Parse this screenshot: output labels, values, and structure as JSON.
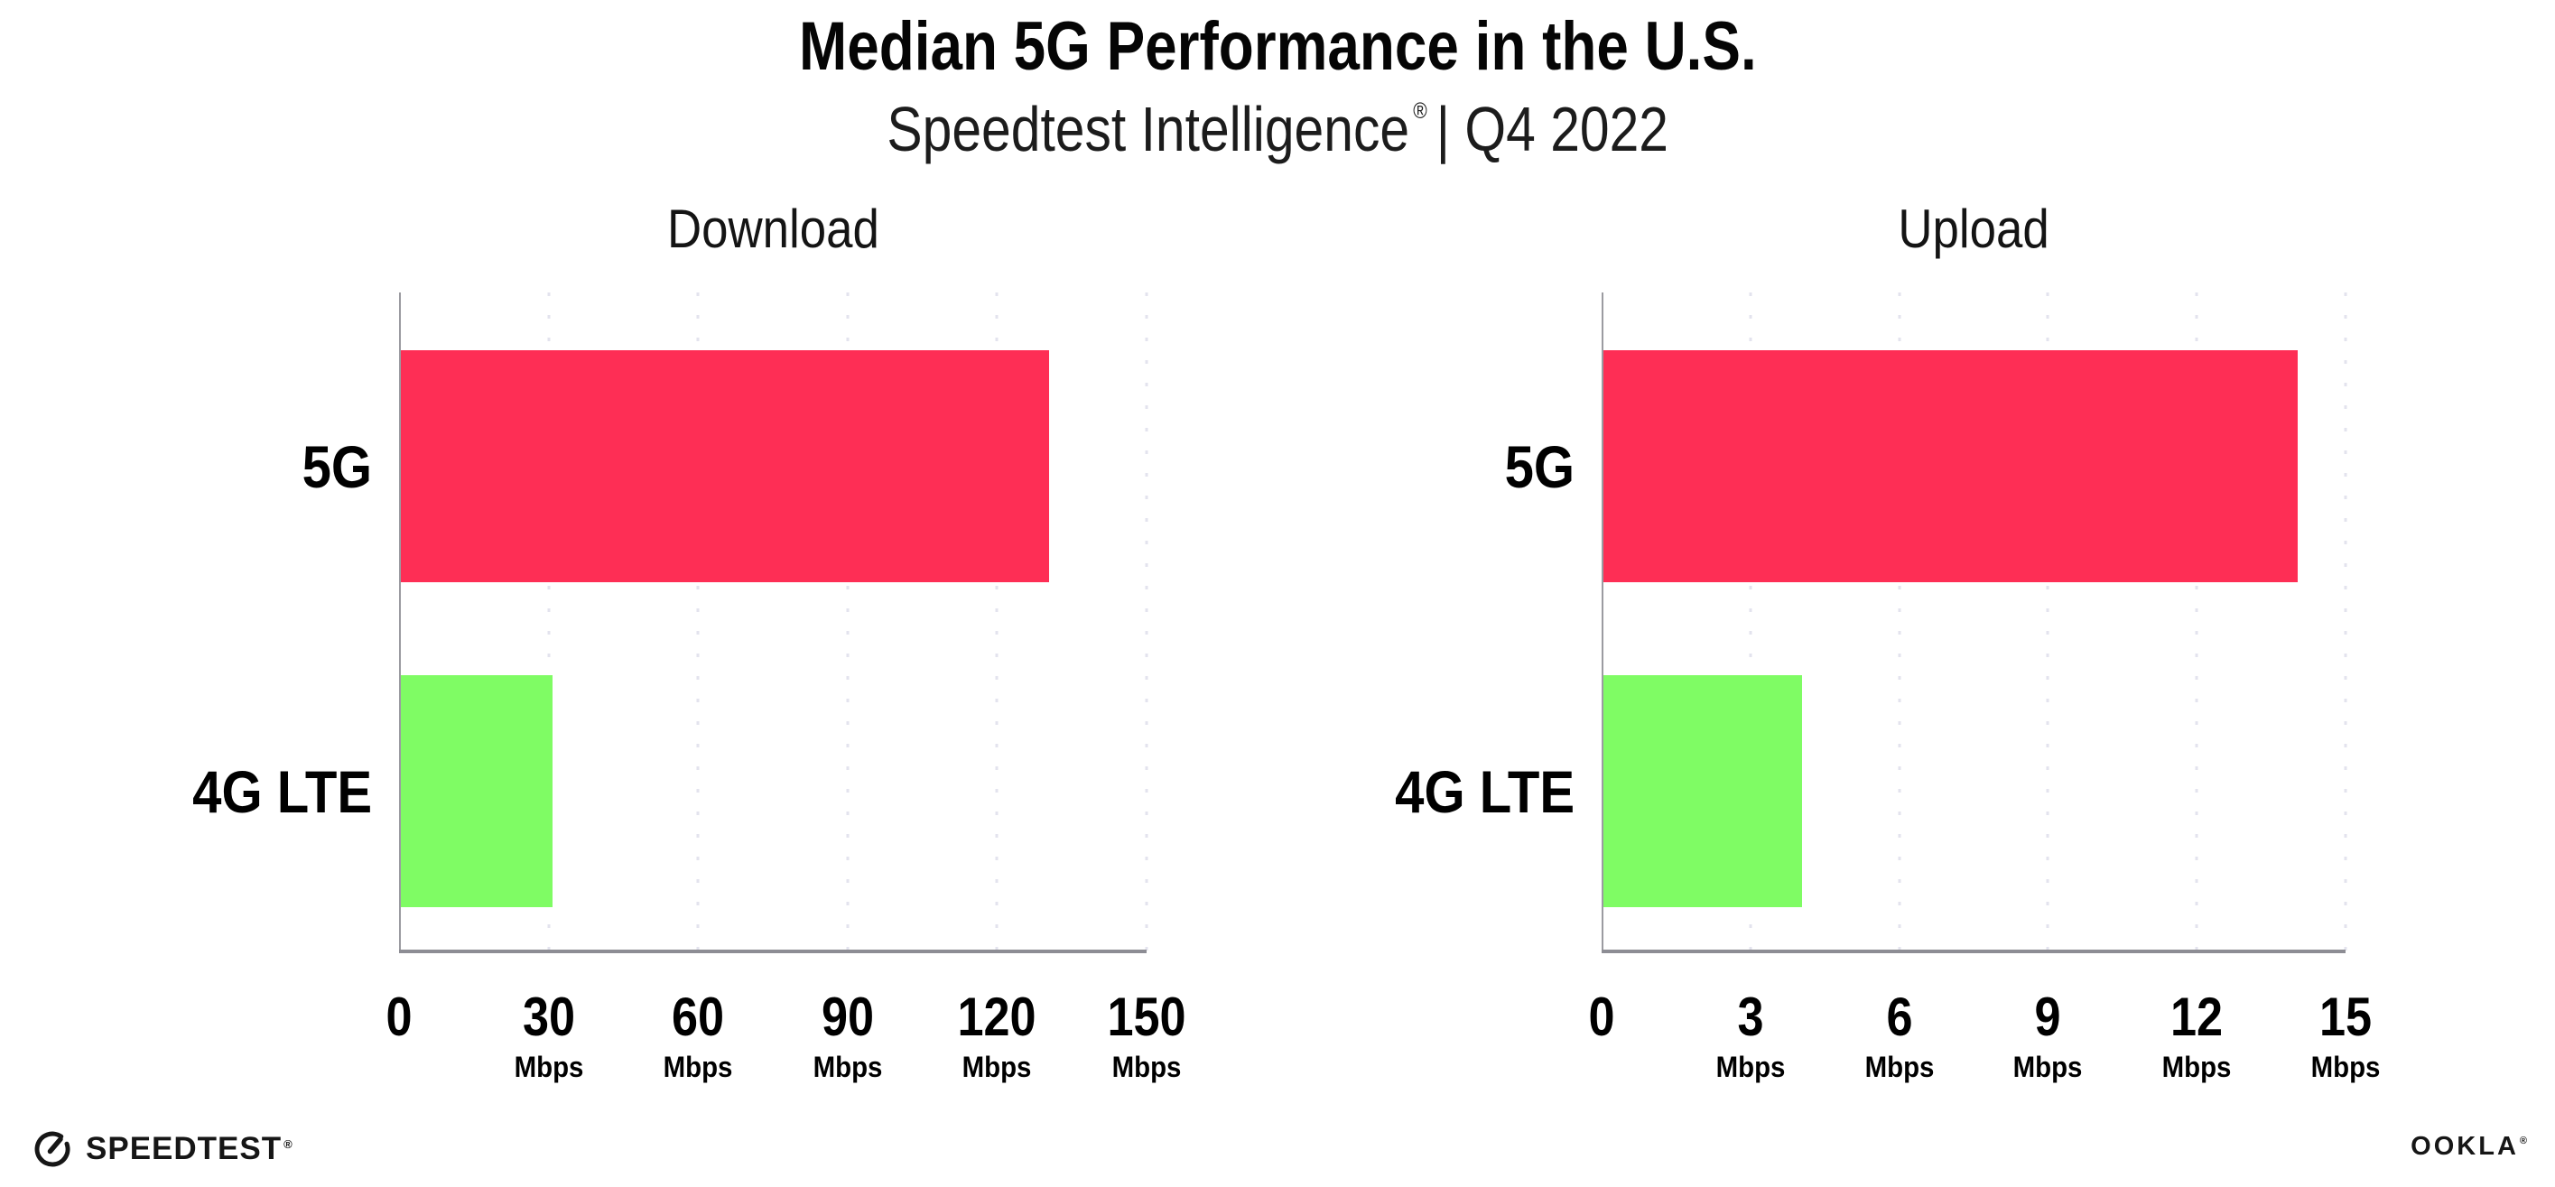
{
  "header": {
    "title": "Median 5G Performance in the U.S.",
    "subtitle_brand": "Speedtest Intelligence",
    "subtitle_reg": "®",
    "subtitle_rest": "| Q4 2022"
  },
  "colors": {
    "bar_5g": "#fe2e55",
    "bar_4g_lte": "#7ffc64",
    "gridline": "#e3e3ee",
    "x_axis": "#8d8d94",
    "y_axis": "#9b9ba1",
    "text": "#000000"
  },
  "chart_data": [
    {
      "type": "bar",
      "orientation": "horizontal",
      "title": "Download",
      "categories": [
        "5G",
        "4G LTE"
      ],
      "values": [
        130,
        30.5
      ],
      "unit": "Mbps",
      "xlim": [
        0,
        150
      ],
      "xticks": [
        0,
        30,
        60,
        90,
        120,
        150
      ],
      "tick_unit_label": "Mbps",
      "grid": "dotted-vertical",
      "legend": "none",
      "bar_colors": [
        "#fe2e55",
        "#7ffc64"
      ]
    },
    {
      "type": "bar",
      "orientation": "horizontal",
      "title": "Upload",
      "categories": [
        "5G",
        "4G LTE"
      ],
      "values": [
        14,
        4
      ],
      "unit": "Mbps",
      "xlim": [
        0,
        15
      ],
      "xticks": [
        0,
        3,
        6,
        9,
        12,
        15
      ],
      "tick_unit_label": "Mbps",
      "grid": "dotted-vertical",
      "legend": "none",
      "bar_colors": [
        "#fe2e55",
        "#7ffc64"
      ]
    }
  ],
  "footer": {
    "speedtest_label": "SPEEDTEST",
    "speedtest_mark": "®",
    "speedtest_icon": "gauge-icon",
    "ookla_label": "OOKLA",
    "ookla_mark": "®"
  }
}
